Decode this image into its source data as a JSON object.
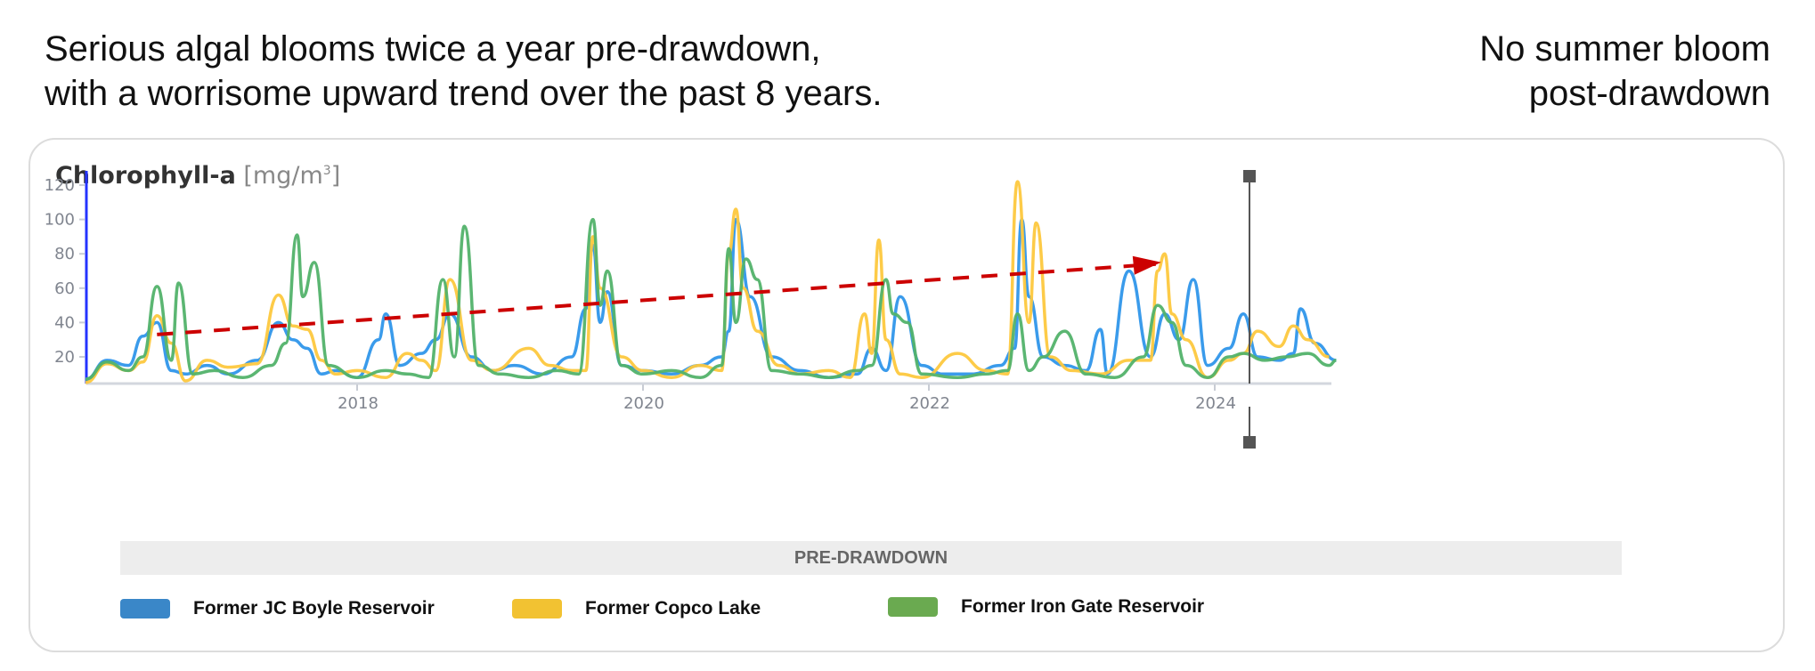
{
  "headlines": {
    "left_line1": "Serious algal blooms twice a year pre-drawdown,",
    "left_line2": "with a worrisome upward trend over the past 8 years.",
    "right_line1": "No summer bloom",
    "right_line2": "post-drawdown"
  },
  "chart": {
    "title_bold": "Chlorophyll-a",
    "title_unit_prefix": "[mg/m",
    "title_unit_sup": "3",
    "title_unit_suffix": "]",
    "phase_label": "PRE-DRAWDOWN"
  },
  "legend": [
    {
      "label": "Former JC Boyle Reservoir",
      "color": "#3a87c8"
    },
    {
      "label": "Former Copco Lake",
      "color": "#f2c232"
    },
    {
      "label": "Former Iron Gate Reservoir",
      "color": "#6aaa50"
    }
  ],
  "colors": {
    "jc_boyle_line": "#2f96ea",
    "copco_line": "#fdc83e",
    "iron_gate_line": "#52b26a",
    "trend": "#cc0000",
    "y_axis": "#2433ff",
    "drawdown_marker": "#555555"
  },
  "chart_data": {
    "type": "line",
    "title": "Chlorophyll-a [mg/m3]",
    "xlabel": "",
    "ylabel": "Chlorophyll-a [mg/m³]",
    "x_ticks": [
      "2018",
      "2020",
      "2022",
      "2024"
    ],
    "y_ticks": [
      20,
      40,
      60,
      80,
      100,
      120
    ],
    "xlim": [
      2016.1,
      2024.85
    ],
    "ylim": [
      5,
      125
    ],
    "grid": false,
    "legend_position": "bottom",
    "annotations": [
      {
        "type": "trend-arrow",
        "label": "upward trend",
        "from": [
          2016.6,
          33
        ],
        "to": [
          2023.6,
          74
        ]
      },
      {
        "type": "vertical-marker",
        "label": "drawdown",
        "x": 2024.24
      },
      {
        "type": "band",
        "label": "PRE-DRAWDOWN",
        "x_range": [
          2016.1,
          2024.2
        ]
      }
    ],
    "series": [
      {
        "name": "Former JC Boyle Reservoir",
        "x": [
          2016.1,
          2016.25,
          2016.4,
          2016.5,
          2016.6,
          2016.7,
          2016.8,
          2016.95,
          2017.1,
          2017.3,
          2017.45,
          2017.55,
          2017.65,
          2017.75,
          2017.85,
          2018.0,
          2018.15,
          2018.2,
          2018.3,
          2018.45,
          2018.55,
          2018.65,
          2018.8,
          2018.95,
          2019.1,
          2019.3,
          2019.5,
          2019.6,
          2019.65,
          2019.7,
          2019.75,
          2019.85,
          2020.0,
          2020.2,
          2020.4,
          2020.55,
          2020.6,
          2020.65,
          2020.75,
          2020.9,
          2021.1,
          2021.3,
          2021.5,
          2021.6,
          2021.7,
          2021.8,
          2021.95,
          2022.1,
          2022.3,
          2022.5,
          2022.6,
          2022.65,
          2022.7,
          2022.8,
          2022.95,
          2023.1,
          2023.2,
          2023.25,
          2023.4,
          2023.55,
          2023.65,
          2023.75,
          2023.85,
          2023.95,
          2024.1,
          2024.2,
          2024.3,
          2024.45,
          2024.55,
          2024.6,
          2024.7,
          2024.85
        ],
        "values": [
          7,
          18,
          15,
          32,
          40,
          12,
          10,
          15,
          10,
          18,
          40,
          30,
          25,
          10,
          12,
          8,
          30,
          45,
          15,
          22,
          30,
          45,
          20,
          12,
          15,
          10,
          20,
          48,
          85,
          40,
          58,
          15,
          12,
          10,
          15,
          20,
          35,
          100,
          55,
          20,
          12,
          8,
          10,
          25,
          12,
          55,
          15,
          10,
          10,
          15,
          25,
          100,
          55,
          20,
          15,
          12,
          36,
          10,
          70,
          20,
          45,
          30,
          65,
          15,
          25,
          45,
          20,
          18,
          22,
          48,
          28,
          18
        ]
      },
      {
        "name": "Former Copco Lake",
        "x": [
          2016.1,
          2016.25,
          2016.4,
          2016.5,
          2016.6,
          2016.7,
          2016.8,
          2016.95,
          2017.1,
          2017.3,
          2017.45,
          2017.55,
          2017.65,
          2017.75,
          2017.85,
          2018.0,
          2018.2,
          2018.35,
          2018.45,
          2018.55,
          2018.65,
          2018.8,
          2018.95,
          2019.2,
          2019.35,
          2019.5,
          2019.6,
          2019.65,
          2019.7,
          2019.85,
          2020.0,
          2020.2,
          2020.4,
          2020.55,
          2020.6,
          2020.65,
          2020.7,
          2020.8,
          2020.95,
          2021.1,
          2021.3,
          2021.45,
          2021.55,
          2021.6,
          2021.65,
          2021.7,
          2021.8,
          2021.95,
          2022.2,
          2022.4,
          2022.55,
          2022.62,
          2022.7,
          2022.75,
          2022.85,
          2023.0,
          2023.2,
          2023.4,
          2023.55,
          2023.6,
          2023.65,
          2023.7,
          2023.8,
          2023.95,
          2024.1,
          2024.2,
          2024.3,
          2024.45,
          2024.55,
          2024.65,
          2024.8
        ],
        "values": [
          5,
          16,
          12,
          17,
          44,
          28,
          6,
          18,
          14,
          16,
          56,
          38,
          36,
          18,
          10,
          12,
          8,
          22,
          18,
          12,
          65,
          18,
          12,
          25,
          15,
          12,
          12,
          90,
          60,
          20,
          12,
          8,
          15,
          12,
          80,
          106,
          60,
          35,
          15,
          10,
          12,
          8,
          45,
          22,
          88,
          30,
          10,
          8,
          22,
          12,
          10,
          122,
          40,
          98,
          20,
          12,
          10,
          18,
          18,
          70,
          80,
          45,
          30,
          8,
          18,
          22,
          35,
          26,
          38,
          30,
          20
        ]
      },
      {
        "name": "Former Iron Gate Reservoir",
        "x": [
          2016.1,
          2016.25,
          2016.4,
          2016.5,
          2016.6,
          2016.7,
          2016.75,
          2016.85,
          2017.0,
          2017.2,
          2017.4,
          2017.5,
          2017.58,
          2017.62,
          2017.7,
          2017.8,
          2018.0,
          2018.2,
          2018.35,
          2018.5,
          2018.6,
          2018.68,
          2018.75,
          2018.85,
          2019.0,
          2019.2,
          2019.4,
          2019.55,
          2019.65,
          2019.7,
          2019.75,
          2019.85,
          2020.0,
          2020.2,
          2020.4,
          2020.55,
          2020.6,
          2020.65,
          2020.72,
          2020.8,
          2020.9,
          2021.1,
          2021.3,
          2021.5,
          2021.6,
          2021.7,
          2021.75,
          2021.85,
          2021.95,
          2022.2,
          2022.4,
          2022.55,
          2022.62,
          2022.7,
          2022.8,
          2022.95,
          2023.1,
          2023.3,
          2023.5,
          2023.6,
          2023.7,
          2023.8,
          2023.95,
          2024.1,
          2024.2,
          2024.35,
          2024.5,
          2024.65,
          2024.8,
          2024.85
        ],
        "values": [
          7,
          17,
          12,
          20,
          61,
          18,
          63,
          10,
          12,
          8,
          15,
          28,
          91,
          55,
          75,
          15,
          8,
          12,
          10,
          8,
          65,
          20,
          96,
          15,
          10,
          8,
          12,
          10,
          100,
          50,
          70,
          15,
          10,
          12,
          8,
          15,
          83,
          40,
          77,
          65,
          12,
          10,
          8,
          12,
          15,
          65,
          45,
          40,
          10,
          8,
          10,
          12,
          45,
          12,
          20,
          35,
          10,
          8,
          20,
          50,
          40,
          15,
          8,
          20,
          22,
          18,
          20,
          22,
          15,
          18
        ]
      }
    ]
  }
}
